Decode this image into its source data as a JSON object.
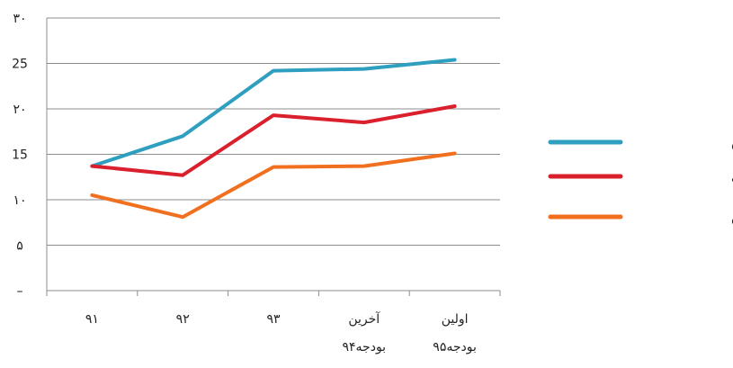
{
  "chart_data": {
    "type": "line",
    "title": "",
    "xlabel": "",
    "ylabel": "",
    "ylim": [
      0,
      30
    ],
    "y_ticks": [
      {
        "value": 0,
        "label": "–"
      },
      {
        "value": 5,
        "label": "۵"
      },
      {
        "value": 10,
        "label": "۱۰"
      },
      {
        "value": 15,
        "label": "15"
      },
      {
        "value": 20,
        "label": "۲۰"
      },
      {
        "value": 25,
        "label": "25"
      },
      {
        "value": 30,
        "label": "۳۰"
      }
    ],
    "categories": [
      {
        "line1": "۹۱",
        "line2": ""
      },
      {
        "line1": "۹۲",
        "line2": ""
      },
      {
        "line1": "۹۳",
        "line2": ""
      },
      {
        "line1": "آخرین",
        "line2": "بودجه۹۴"
      },
      {
        "line1": "اولین",
        "line2": "بودجه۹۵"
      }
    ],
    "grid": true,
    "legend_position": "right",
    "series": [
      {
        "name": "حاشیه سود ناخالص",
        "color": "#2e9fbf",
        "values": [
          13.7,
          17.0,
          24.2,
          24.4,
          25.4
        ]
      },
      {
        "name": "حاشیه سود عملیاتی",
        "color": "#d9202c",
        "values": [
          13.7,
          12.7,
          19.3,
          18.5,
          20.3
        ]
      },
      {
        "name": "حاشیه سود خالص",
        "color": "#f07020",
        "values": [
          10.5,
          8.1,
          13.6,
          13.7,
          15.1
        ]
      }
    ]
  }
}
